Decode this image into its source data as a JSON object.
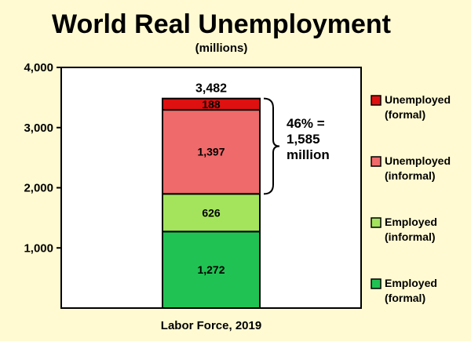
{
  "chart_data": {
    "type": "bar",
    "stacked": true,
    "title": "World Real Unemployment",
    "subtitle": "(millions)",
    "categories": [
      "Labor Force, 2019"
    ],
    "ylim": [
      0,
      4000
    ],
    "yticks": [
      "4,000",
      "3,000",
      "2,000",
      "1,000"
    ],
    "ytick_values": [
      4000,
      3000,
      2000,
      1000
    ],
    "total_label": "3,482",
    "series": [
      {
        "name": "Employed (formal)",
        "legend": [
          "Employed",
          "(formal)"
        ],
        "value": 1272,
        "label": "1,272",
        "color": "#21c254"
      },
      {
        "name": "Employed (informal)",
        "legend": [
          "Employed",
          "(informal)"
        ],
        "value": 626,
        "label": "626",
        "color": "#a3e45c"
      },
      {
        "name": "Unemployed (informal)",
        "legend": [
          "Unemployed",
          "(informal)"
        ],
        "value": 1397,
        "label": "1,397",
        "color": "#ef6a6a"
      },
      {
        "name": "Unemployed (formal)",
        "legend": [
          "Unemployed",
          "(formal)"
        ],
        "value": 188,
        "label": "188",
        "color": "#df1010"
      }
    ],
    "annotation": [
      "46% =",
      "1,585",
      "million"
    ],
    "grid": false,
    "legend_position": "right"
  }
}
